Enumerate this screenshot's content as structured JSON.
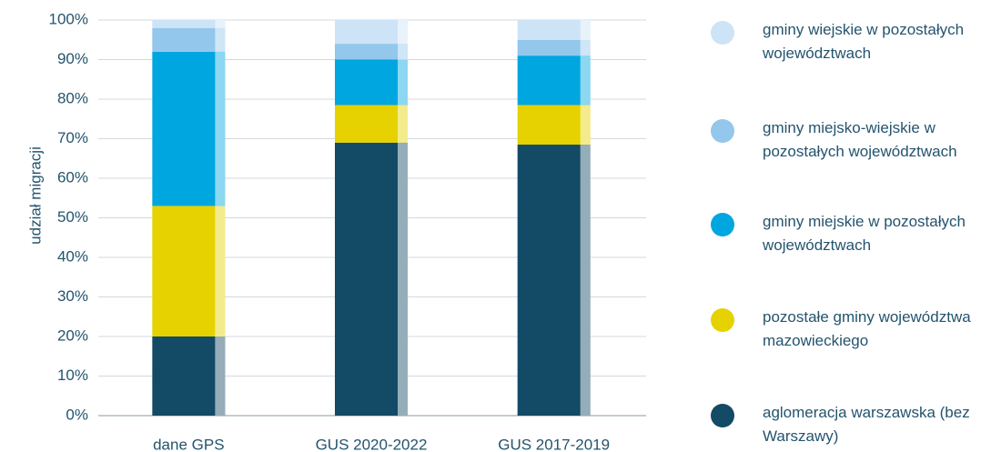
{
  "chart_data": {
    "type": "stacked_bar",
    "y_label": "udział migracji",
    "categories": [
      "dane GPS",
      "GUS 2020-2022",
      "GUS 2017-2019"
    ],
    "series": [
      {
        "name": "aglomeracja warszawska (bez Warszawy)",
        "color": "#134a65",
        "values": [
          20,
          69,
          68.5
        ]
      },
      {
        "name": "pozostałe gminy województwa mazowieckiego",
        "color": "#e5d200",
        "values": [
          33,
          9.5,
          10
        ]
      },
      {
        "name": "gminy miejskie w pozostałych województwach",
        "color": "#00a6df",
        "values": [
          39,
          11.5,
          12.5
        ]
      },
      {
        "name": "gminy miejsko-wiejskie w pozostałych województwach",
        "color": "#93c7ec",
        "values": [
          6,
          4,
          4
        ]
      },
      {
        "name": "gminy wiejskie w pozostałych województwach",
        "color": "#cde3f6",
        "values": [
          2,
          6,
          5
        ]
      }
    ],
    "ylim": [
      0,
      100
    ],
    "yticks": [
      {
        "value": 0,
        "label": "0%"
      },
      {
        "value": 10,
        "label": "10%"
      },
      {
        "value": 20,
        "label": "20%"
      },
      {
        "value": 30,
        "label": "30%"
      },
      {
        "value": 40,
        "label": "40%"
      },
      {
        "value": 50,
        "label": "50%"
      },
      {
        "value": 60,
        "label": "60%"
      },
      {
        "value": 70,
        "label": "70%"
      },
      {
        "value": 80,
        "label": "80%"
      },
      {
        "value": 90,
        "label": "90%"
      },
      {
        "value": 100,
        "label": "100%"
      }
    ],
    "grid": true
  }
}
